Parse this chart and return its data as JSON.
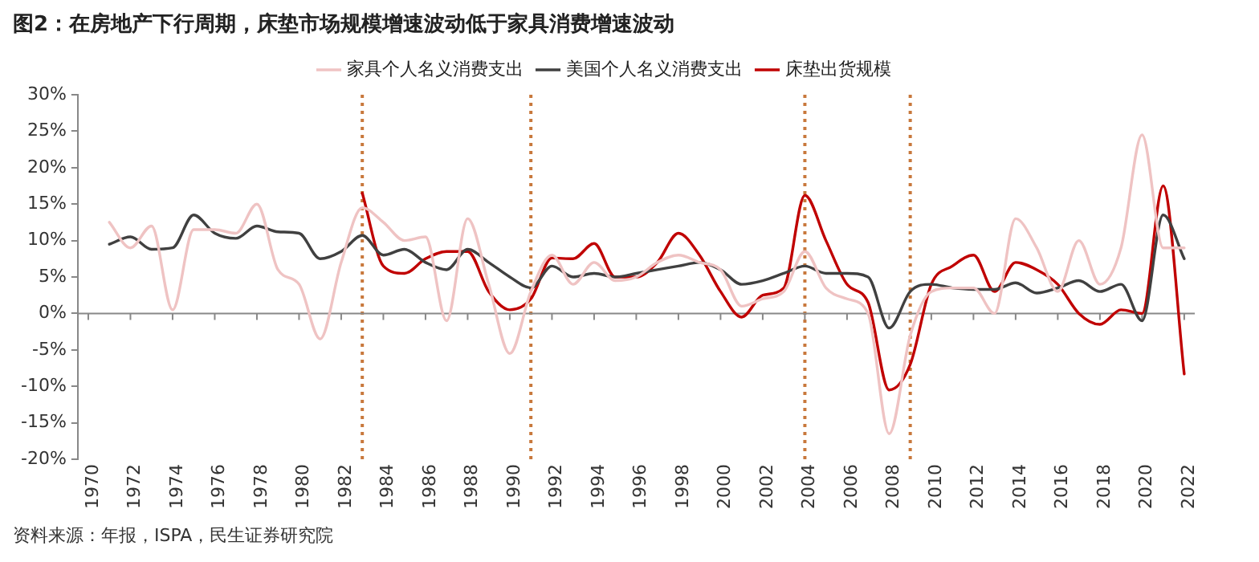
{
  "chart_data": {
    "type": "line",
    "title": "图2：在房地产下行周期，床垫市场规模增速波动低于家具消费增速波动",
    "annotations": [
      "资料来源：年报，ISPA，民生证券研究院"
    ],
    "xlim": [
      1969.5,
      2022.5
    ],
    "xticks": [
      1970,
      1972,
      1974,
      1976,
      1978,
      1980,
      1982,
      1984,
      1986,
      1988,
      1990,
      1992,
      1994,
      1996,
      1998,
      2000,
      2002,
      2004,
      2006,
      2008,
      2010,
      2012,
      2014,
      2016,
      2018,
      2020,
      2022
    ],
    "ylim": [
      -20,
      30
    ],
    "yticks": [
      {
        "value": 30,
        "label": "30%"
      },
      {
        "value": 25,
        "label": "25%"
      },
      {
        "value": 20,
        "label": "20%"
      },
      {
        "value": 15,
        "label": "15%"
      },
      {
        "value": 10,
        "label": "10%"
      },
      {
        "value": 5,
        "label": "5%"
      },
      {
        "value": 0,
        "label": "0%"
      },
      {
        "value": -5,
        "label": "-5%"
      },
      {
        "value": -10,
        "label": "-10%"
      },
      {
        "value": -15,
        "label": "-15%"
      },
      {
        "value": -20,
        "label": "-20%"
      }
    ],
    "grid": false,
    "legend": "top",
    "marker": "none",
    "line_style": "solid",
    "ref_lines": [
      {
        "axis": "x",
        "value": 1983,
        "color": "#c8783c",
        "line_style": "dotted"
      },
      {
        "axis": "x",
        "value": 1991,
        "color": "#c8783c",
        "line_style": "dotted"
      },
      {
        "axis": "x",
        "value": 2004,
        "color": "#c8783c",
        "line_style": "dotted"
      },
      {
        "axis": "x",
        "value": 2009,
        "color": "#c8783c",
        "line_style": "dotted"
      }
    ],
    "series": [
      {
        "name": "家具个人名义消费支出",
        "color": "#efc3c3",
        "x": [
          1971,
          1972,
          1973,
          1974,
          1975,
          1976,
          1977,
          1978,
          1979,
          1980,
          1981,
          1982,
          1983,
          1984,
          1985,
          1986,
          1987,
          1988,
          1989,
          1990,
          1991,
          1992,
          1993,
          1994,
          1995,
          1996,
          1997,
          1998,
          1999,
          2000,
          2001,
          2002,
          2003,
          2004,
          2005,
          2006,
          2007,
          2008,
          2009,
          2010,
          2011,
          2012,
          2013,
          2014,
          2015,
          2016,
          2017,
          2018,
          2019,
          2020,
          2021,
          2022
        ],
        "values": [
          12.5,
          9,
          12,
          0.5,
          11.5,
          11.5,
          11,
          15,
          6,
          4,
          -3.5,
          7,
          14.5,
          12.5,
          10,
          10.5,
          -1,
          13,
          4,
          -5.5,
          3,
          8,
          4,
          7,
          4.5,
          5,
          7,
          8,
          7,
          6,
          1,
          2,
          3,
          8.5,
          3.5,
          2,
          0,
          -16.5,
          -3,
          3,
          3.5,
          3.5,
          0,
          13,
          9,
          3,
          10,
          4,
          9,
          24.5,
          9,
          9
        ]
      },
      {
        "name": "美国个人名义消费支出",
        "color": "#404040",
        "x": [
          1971,
          1972,
          1973,
          1974,
          1975,
          1976,
          1977,
          1978,
          1979,
          1980,
          1981,
          1982,
          1983,
          1984,
          1985,
          1986,
          1987,
          1988,
          1989,
          1990,
          1991,
          1992,
          1993,
          1994,
          1995,
          1996,
          1997,
          1998,
          1999,
          2000,
          2001,
          2002,
          2003,
          2004,
          2005,
          2006,
          2007,
          2008,
          2009,
          2010,
          2011,
          2012,
          2013,
          2014,
          2015,
          2016,
          2017,
          2018,
          2019,
          2020,
          2021,
          2022
        ],
        "values": [
          9.5,
          10.5,
          8.8,
          9,
          13.5,
          11,
          10.3,
          12,
          11.2,
          11,
          7.5,
          8.5,
          10.7,
          8,
          8.8,
          7,
          6,
          8.8,
          7,
          5,
          3.5,
          6.5,
          5,
          5.5,
          5,
          5.5,
          6,
          6.5,
          7,
          6,
          4,
          4.5,
          5.5,
          6.5,
          5.5,
          5.5,
          5,
          -2,
          3,
          4,
          3.5,
          3.3,
          3.3,
          4.2,
          2.8,
          3.5,
          4.5,
          3,
          4,
          -1,
          13.5,
          7.5
        ]
      },
      {
        "name": "床垫出货规模",
        "color": "#c00000",
        "x": [
          1983,
          1984,
          1985,
          1986,
          1987,
          1988,
          1989,
          1990,
          1991,
          1992,
          1993,
          1994,
          1995,
          1996,
          1997,
          1998,
          1999,
          2000,
          2001,
          2002,
          2003,
          2004,
          2005,
          2006,
          2007,
          2008,
          2009,
          2010,
          2011,
          2012,
          2013,
          2014,
          2015,
          2016,
          2017,
          2018,
          2019,
          2020,
          2021,
          2022
        ],
        "values": [
          16.5,
          6.5,
          5.5,
          7.5,
          8.5,
          8.5,
          3,
          0.5,
          2,
          7.6,
          7.5,
          9.6,
          5,
          5,
          7,
          11,
          8,
          3,
          -0.5,
          2.5,
          3.5,
          16.2,
          10,
          4,
          1.5,
          -10.5,
          -7,
          4,
          6.5,
          8,
          3,
          7,
          6,
          4,
          0,
          -1.5,
          0.5,
          0,
          17.5,
          -8.3
        ]
      }
    ]
  }
}
